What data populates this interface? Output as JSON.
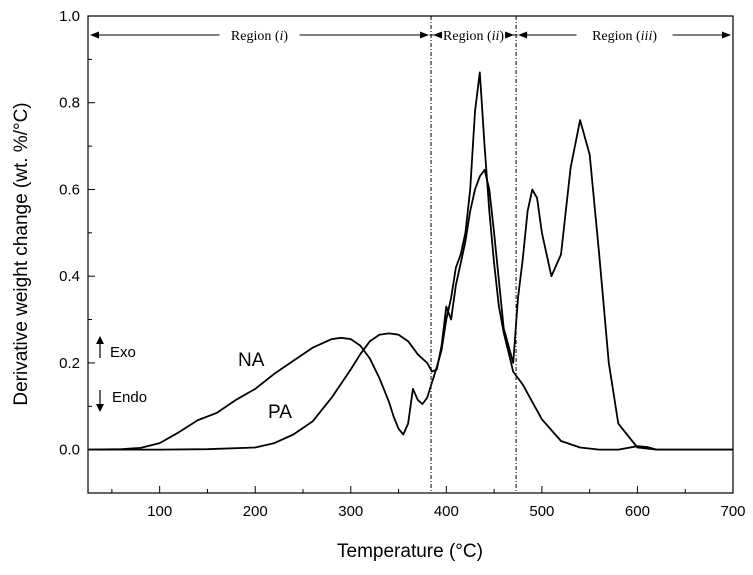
{
  "chart_data": {
    "type": "line",
    "title": "",
    "xlabel": "Temperature (°C)",
    "ylabel": "Derivative weight change (wt. %/°C)",
    "xlim": [
      25,
      700
    ],
    "ylim": [
      -0.1,
      1.0
    ],
    "xticks": [
      100,
      200,
      300,
      400,
      500,
      600,
      700
    ],
    "xtick_labels": [
      "100",
      "200",
      "300",
      "400",
      "500",
      "600",
      "700"
    ],
    "yticks": [
      0.0,
      0.2,
      0.4,
      0.6,
      0.8,
      1.0
    ],
    "ytick_labels": [
      "0.0",
      "0.2",
      "0.4",
      "0.6",
      "0.8",
      "1.0"
    ],
    "grid": false,
    "vlines": [
      384,
      473
    ],
    "regions": [
      {
        "label": "Region (i)",
        "text": "Region (",
        "roman": "i",
        "close": ")",
        "x_start": 25,
        "x_end": 384
      },
      {
        "label": "Region (ii)",
        "text": "Region (",
        "roman": "ii",
        "close": ")",
        "x_start": 384,
        "x_end": 473
      },
      {
        "label": "Region (iii)",
        "text": "Region (",
        "roman": "iii",
        "close": ")",
        "x_start": 473,
        "x_end": 700
      }
    ],
    "indicators": {
      "exo": "Exo",
      "endo": "Endo"
    },
    "series": [
      {
        "name": "NA",
        "x": [
          25,
          60,
          80,
          100,
          120,
          140,
          160,
          180,
          200,
          220,
          240,
          260,
          280,
          290,
          300,
          310,
          320,
          330,
          340,
          345,
          350,
          355,
          360,
          365,
          370,
          375,
          380,
          385,
          390,
          395,
          400,
          405,
          410,
          415,
          420,
          425,
          430,
          435,
          440,
          445,
          450,
          455,
          460,
          470,
          480,
          490,
          500,
          520,
          540,
          560,
          580,
          600,
          610,
          620,
          640,
          700
        ],
        "y": [
          0.0,
          0.001,
          0.004,
          0.015,
          0.04,
          0.068,
          0.085,
          0.115,
          0.14,
          0.175,
          0.205,
          0.235,
          0.255,
          0.258,
          0.255,
          0.24,
          0.21,
          0.165,
          0.11,
          0.075,
          0.048,
          0.035,
          0.06,
          0.14,
          0.115,
          0.105,
          0.12,
          0.155,
          0.19,
          0.23,
          0.3,
          0.35,
          0.42,
          0.45,
          0.5,
          0.6,
          0.78,
          0.87,
          0.7,
          0.55,
          0.43,
          0.33,
          0.27,
          0.18,
          0.15,
          0.11,
          0.07,
          0.02,
          0.005,
          0.0,
          0.0,
          0.008,
          0.006,
          0.0,
          0.0,
          0.0
        ]
      },
      {
        "name": "PA",
        "x": [
          25,
          100,
          150,
          200,
          220,
          240,
          260,
          280,
          300,
          310,
          320,
          330,
          340,
          350,
          360,
          365,
          370,
          375,
          380,
          385,
          390,
          395,
          400,
          405,
          410,
          415,
          420,
          425,
          430,
          435,
          440,
          445,
          450,
          460,
          470,
          475,
          480,
          485,
          490,
          495,
          500,
          510,
          520,
          530,
          540,
          550,
          560,
          570,
          580,
          600,
          620,
          640,
          700
        ],
        "y": [
          0.0,
          0.0,
          0.001,
          0.005,
          0.015,
          0.035,
          0.065,
          0.12,
          0.185,
          0.22,
          0.25,
          0.265,
          0.268,
          0.265,
          0.25,
          0.235,
          0.22,
          0.21,
          0.2,
          0.18,
          0.185,
          0.24,
          0.33,
          0.3,
          0.38,
          0.43,
          0.48,
          0.55,
          0.6,
          0.63,
          0.645,
          0.6,
          0.5,
          0.28,
          0.2,
          0.35,
          0.44,
          0.55,
          0.6,
          0.58,
          0.5,
          0.4,
          0.45,
          0.65,
          0.76,
          0.68,
          0.45,
          0.2,
          0.06,
          0.005,
          0.0,
          0.0,
          0.0
        ]
      }
    ]
  }
}
